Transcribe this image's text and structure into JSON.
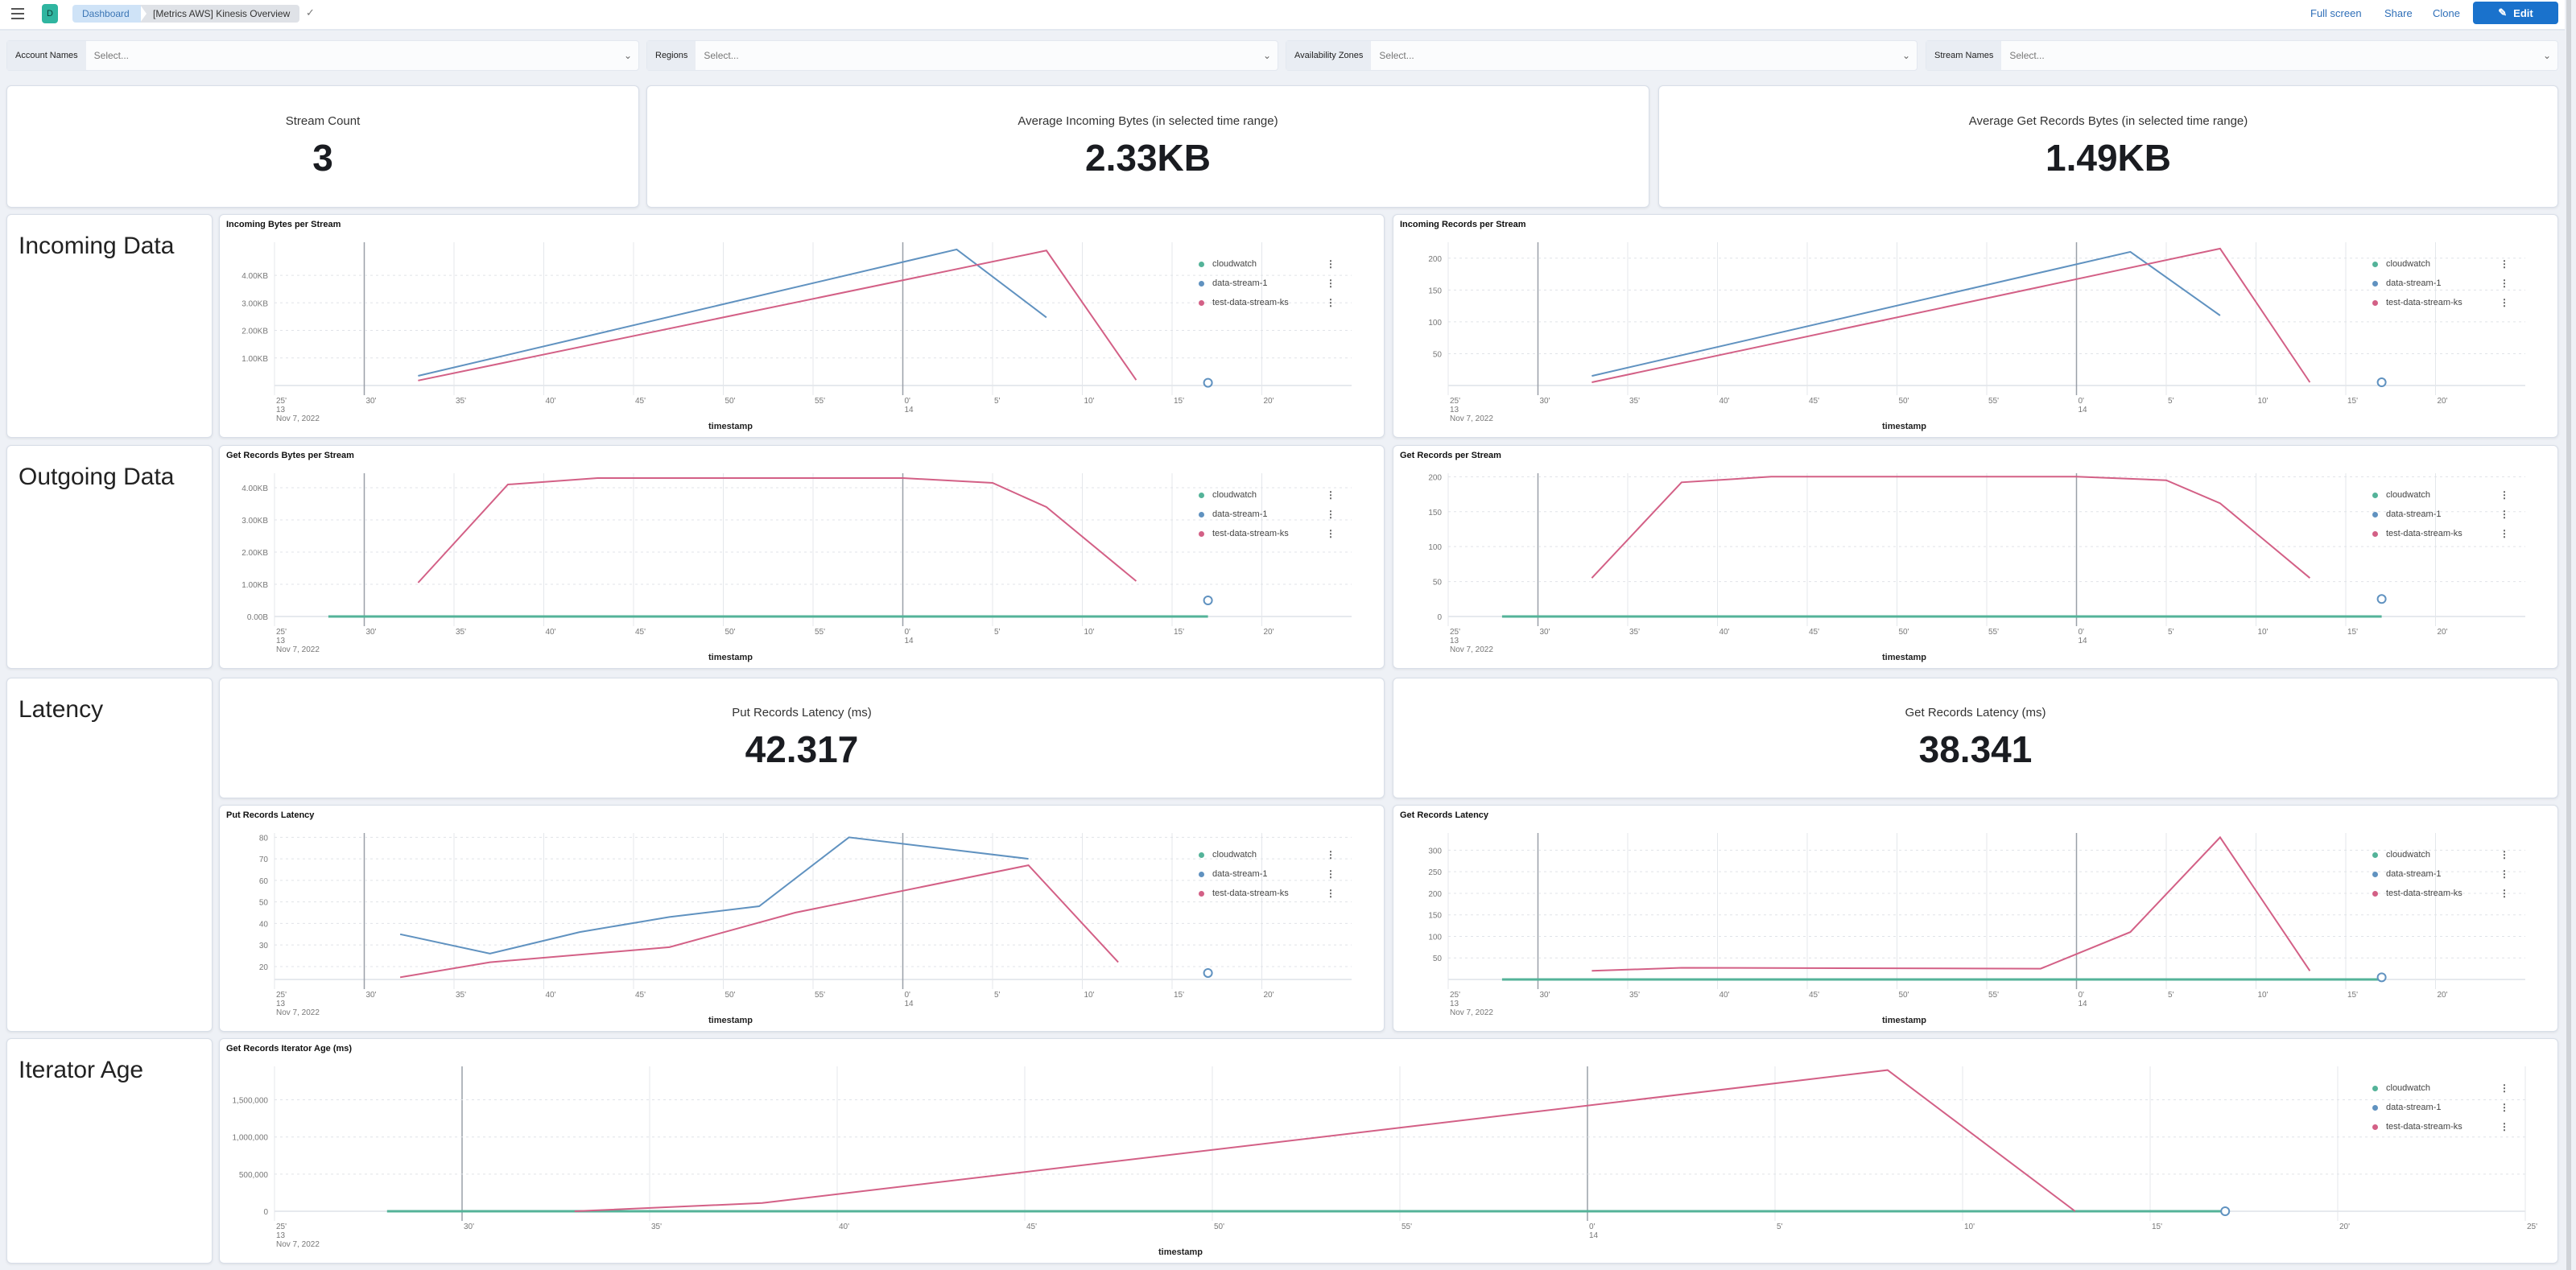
{
  "header": {
    "app_badge": "D",
    "breadcrumbs": [
      "Dashboard",
      "[Metrics AWS] Kinesis Overview"
    ],
    "actions": {
      "full_screen": "Full screen",
      "share": "Share",
      "clone": "Clone",
      "edit": "Edit"
    }
  },
  "filters": [
    {
      "label": "Account Names",
      "placeholder": "Select..."
    },
    {
      "label": "Regions",
      "placeholder": "Select..."
    },
    {
      "label": "Availability Zones",
      "placeholder": "Select..."
    },
    {
      "label": "Stream Names",
      "placeholder": "Select..."
    }
  ],
  "kpis": [
    {
      "title": "Stream Count",
      "value": "3"
    },
    {
      "title": "Average Incoming Bytes (in selected time range)",
      "value": "2.33KB"
    },
    {
      "title": "Average Get Records Bytes (in selected time range)",
      "value": "1.49KB"
    }
  ],
  "sections": {
    "incoming": "Incoming Data",
    "outgoing": "Outgoing Data",
    "latency": "Latency",
    "iterator": "Iterator Age"
  },
  "latency_metrics": [
    {
      "title": "Put Records Latency (ms)",
      "value": "42.317"
    },
    {
      "title": "Get Records Latency (ms)",
      "value": "38.341"
    }
  ],
  "colors": {
    "cloudwatch": "#54B399",
    "data-stream-1": "#6092C0",
    "test-data-stream-ks": "#D36086"
  },
  "x_axis": {
    "label": "timestamp",
    "date": "Nov 7, 2022",
    "domain": [
      "13:25",
      "14:25"
    ],
    "ticks": [
      {
        "time": "13:25",
        "label": "25'",
        "sub": "13"
      },
      {
        "time": "13:30",
        "label": "30'"
      },
      {
        "time": "13:35",
        "label": "35'"
      },
      {
        "time": "13:40",
        "label": "40'"
      },
      {
        "time": "13:45",
        "label": "45'"
      },
      {
        "time": "13:50",
        "label": "50'"
      },
      {
        "time": "13:55",
        "label": "55'"
      },
      {
        "time": "14:00",
        "label": "0'",
        "sub": "14"
      },
      {
        "time": "14:05",
        "label": "5'"
      },
      {
        "time": "14:10",
        "label": "10'"
      },
      {
        "time": "14:15",
        "label": "15'"
      },
      {
        "time": "14:20",
        "label": "20'"
      }
    ]
  },
  "legend": [
    "cloudwatch",
    "data-stream-1",
    "test-data-stream-ks"
  ],
  "chart_data": [
    {
      "id": "incoming_bytes",
      "type": "line",
      "title": "Incoming Bytes per Stream",
      "ylim": [
        0,
        5.2
      ],
      "y_unit": "KB",
      "y_ticks": [
        {
          "v": 1,
          "label": "1.00KB"
        },
        {
          "v": 2,
          "label": "2.00KB"
        },
        {
          "v": 3,
          "label": "3.00KB"
        },
        {
          "v": 4,
          "label": "4.00KB"
        }
      ],
      "series": [
        {
          "name": "data-stream-1",
          "points": [
            [
              "13:33",
              0.35
            ],
            [
              "14:03",
              4.94
            ],
            [
              "14:08",
              2.47
            ]
          ],
          "dot": [
            "14:17",
            0.1
          ]
        },
        {
          "name": "test-data-stream-ks",
          "points": [
            [
              "13:33",
              0.18
            ],
            [
              "14:08",
              4.9
            ],
            [
              "14:13",
              0.2
            ]
          ]
        }
      ]
    },
    {
      "id": "incoming_records",
      "type": "line",
      "title": "Incoming Records per Stream",
      "ylim": [
        0,
        225
      ],
      "y_ticks": [
        {
          "v": 50,
          "label": "50"
        },
        {
          "v": 100,
          "label": "100"
        },
        {
          "v": 150,
          "label": "150"
        },
        {
          "v": 200,
          "label": "200"
        }
      ],
      "series": [
        {
          "name": "data-stream-1",
          "points": [
            [
              "13:33",
              15
            ],
            [
              "14:03",
              210
            ],
            [
              "14:08",
              110
            ]
          ],
          "dot": [
            "14:17",
            5
          ]
        },
        {
          "name": "test-data-stream-ks",
          "points": [
            [
              "13:33",
              5
            ],
            [
              "14:08",
              215
            ],
            [
              "14:13",
              5
            ]
          ]
        }
      ]
    },
    {
      "id": "get_records_bytes",
      "type": "line",
      "title": "Get Records Bytes per Stream",
      "ylim": [
        0,
        4.45
      ],
      "y_unit": "KB",
      "y_ticks": [
        {
          "v": 0,
          "label": "0.00B"
        },
        {
          "v": 1,
          "label": "1.00KB"
        },
        {
          "v": 2,
          "label": "2.00KB"
        },
        {
          "v": 3,
          "label": "3.00KB"
        },
        {
          "v": 4,
          "label": "4.00KB"
        }
      ],
      "series": [
        {
          "name": "cloudwatch",
          "points": [
            [
              "13:28",
              0
            ],
            [
              "14:17",
              0
            ]
          ]
        },
        {
          "name": "data-stream-1",
          "points": [],
          "dot": [
            "14:17",
            0.5
          ]
        },
        {
          "name": "test-data-stream-ks",
          "points": [
            [
              "13:33",
              1.05
            ],
            [
              "13:38",
              4.1
            ],
            [
              "13:43",
              4.3
            ],
            [
              "14:00",
              4.3
            ],
            [
              "14:05",
              4.15
            ],
            [
              "14:08",
              3.4
            ],
            [
              "14:13",
              1.1
            ]
          ]
        }
      ]
    },
    {
      "id": "get_records",
      "type": "line",
      "title": "Get Records per Stream",
      "ylim": [
        0,
        205
      ],
      "y_ticks": [
        {
          "v": 0,
          "label": "0"
        },
        {
          "v": 50,
          "label": "50"
        },
        {
          "v": 100,
          "label": "100"
        },
        {
          "v": 150,
          "label": "150"
        },
        {
          "v": 200,
          "label": "200"
        }
      ],
      "series": [
        {
          "name": "cloudwatch",
          "points": [
            [
              "13:28",
              0
            ],
            [
              "14:17",
              0
            ]
          ]
        },
        {
          "name": "data-stream-1",
          "points": [],
          "dot": [
            "14:17",
            25
          ]
        },
        {
          "name": "test-data-stream-ks",
          "points": [
            [
              "13:33",
              55
            ],
            [
              "13:38",
              192
            ],
            [
              "13:43",
              200
            ],
            [
              "14:00",
              200
            ],
            [
              "14:05",
              195
            ],
            [
              "14:08",
              162
            ],
            [
              "14:13",
              55
            ]
          ]
        }
      ]
    },
    {
      "id": "put_latency",
      "type": "line",
      "title": "Put Records Latency",
      "ylim": [
        14,
        82
      ],
      "y_ticks": [
        {
          "v": 20,
          "label": "20"
        },
        {
          "v": 30,
          "label": "30"
        },
        {
          "v": 40,
          "label": "40"
        },
        {
          "v": 50,
          "label": "50"
        },
        {
          "v": 60,
          "label": "60"
        },
        {
          "v": 70,
          "label": "70"
        },
        {
          "v": 80,
          "label": "80"
        }
      ],
      "series": [
        {
          "name": "data-stream-1",
          "points": [
            [
              "13:32",
              35
            ],
            [
              "13:37",
              26
            ],
            [
              "13:42",
              36
            ],
            [
              "13:47",
              43
            ],
            [
              "13:52",
              48
            ],
            [
              "13:57",
              80
            ],
            [
              "14:07",
              70
            ]
          ],
          "dot": [
            "14:17",
            17
          ]
        },
        {
          "name": "test-data-stream-ks",
          "points": [
            [
              "13:32",
              15
            ],
            [
              "13:37",
              22
            ],
            [
              "13:47",
              29
            ],
            [
              "13:54",
              45
            ],
            [
              "14:07",
              67
            ],
            [
              "14:12",
              22
            ]
          ]
        }
      ]
    },
    {
      "id": "get_latency",
      "type": "line",
      "title": "Get Records Latency",
      "ylim": [
        0,
        340
      ],
      "y_ticks": [
        {
          "v": 50,
          "label": "50"
        },
        {
          "v": 100,
          "label": "100"
        },
        {
          "v": 150,
          "label": "150"
        },
        {
          "v": 200,
          "label": "200"
        },
        {
          "v": 250,
          "label": "250"
        },
        {
          "v": 300,
          "label": "300"
        }
      ],
      "series": [
        {
          "name": "cloudwatch",
          "points": [
            [
              "13:28",
              0
            ],
            [
              "14:17",
              0
            ]
          ]
        },
        {
          "name": "data-stream-1",
          "points": [],
          "dot": [
            "14:17",
            5
          ]
        },
        {
          "name": "test-data-stream-ks",
          "points": [
            [
              "13:33",
              20
            ],
            [
              "13:38",
              27
            ],
            [
              "13:58",
              25
            ],
            [
              "14:03",
              110
            ],
            [
              "14:08",
              330
            ],
            [
              "14:13",
              20
            ]
          ]
        }
      ]
    },
    {
      "id": "iterator_age",
      "type": "line",
      "title": "Get Records Iterator Age (ms)",
      "ylim": [
        0,
        1950000
      ],
      "y_ticks": [
        {
          "v": 0,
          "label": "0"
        },
        {
          "v": 500000,
          "label": "500,000"
        },
        {
          "v": 1000000,
          "label": "1,000,000"
        },
        {
          "v": 1500000,
          "label": "1,500,000"
        }
      ],
      "extra_x_ticks": [
        {
          "time": "14:25",
          "label": "25'"
        }
      ],
      "series": [
        {
          "name": "cloudwatch",
          "points": [
            [
              "13:28",
              0
            ],
            [
              "14:17",
              0
            ]
          ]
        },
        {
          "name": "data-stream-1",
          "points": [],
          "dot": [
            "14:17",
            0
          ]
        },
        {
          "name": "test-data-stream-ks",
          "points": [
            [
              "13:33",
              0
            ],
            [
              "13:38",
              110000
            ],
            [
              "14:08",
              1900000
            ],
            [
              "14:13",
              0
            ]
          ]
        }
      ]
    }
  ]
}
